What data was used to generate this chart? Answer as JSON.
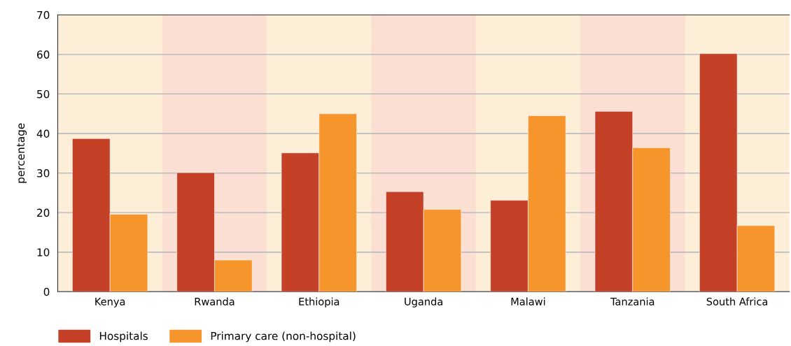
{
  "chart_data": {
    "type": "bar",
    "ylabel": "percentage",
    "categories": [
      "Kenya",
      "Rwanda",
      "Ethiopia",
      "Uganda",
      "Malawi",
      "Tanzania",
      "South Africa"
    ],
    "series": [
      {
        "name": "Hospitals",
        "color": "#c44027",
        "values": [
          38.7,
          30.1,
          35.1,
          25.3,
          23.1,
          45.6,
          60.2
        ]
      },
      {
        "name": "Primary care (non-hospital)",
        "color": "#f7952d",
        "values": [
          19.6,
          8.0,
          45.0,
          20.8,
          44.5,
          36.4,
          16.7
        ]
      }
    ],
    "bands": [
      {
        "axis": "x",
        "from": "Rwanda",
        "to": "Rwanda",
        "color": "#fbdfd2"
      },
      {
        "axis": "x",
        "from": "Uganda",
        "to": "Uganda",
        "color": "#fbdfd2"
      },
      {
        "axis": "x",
        "from": "Tanzania",
        "to": "Tanzania",
        "color": "#fbdfd2"
      }
    ],
    "ylim": [
      0,
      70
    ],
    "yticks": [
      0,
      10,
      20,
      30,
      40,
      50,
      60,
      70
    ],
    "grid": "y",
    "legend": "bottom left"
  }
}
